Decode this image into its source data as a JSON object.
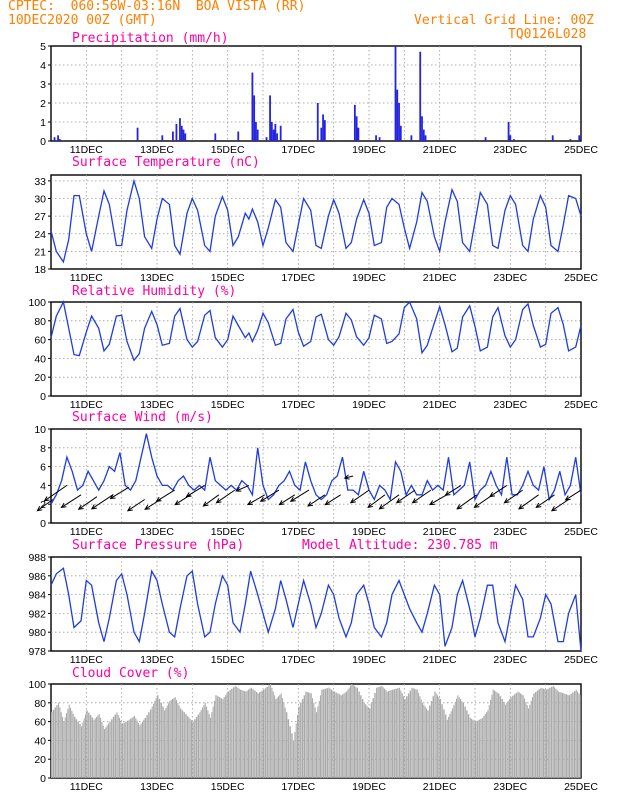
{
  "header": {
    "line1": "CPTEC:  060:56W-03:16N  BOA VISTA (RR)",
    "line2": "10DEC2020 00Z (GMT)",
    "right1": "Vertical Grid Line: 00Z",
    "right2": "TQ0126L028"
  },
  "colors": {
    "header": "#ff7f00",
    "title": "#ff00a0",
    "line": "#1f3ce0",
    "bar": "#2424e0",
    "cloud": "#aaaaaa",
    "grid": "#9a9a9a"
  },
  "day_labels": [
    "11DEC",
    "13DEC",
    "15DEC",
    "17DEC",
    "19DEC",
    "21DEC",
    "23DEC",
    "25DEC"
  ],
  "model_altitude": "Model Altitude: 230.785 m",
  "chart_data": [
    {
      "id": "precip",
      "type": "bar",
      "title": "Precipitation (mm/h)",
      "ylim": [
        0,
        5
      ],
      "yticks": [
        0,
        1,
        2,
        3,
        4,
        5
      ],
      "x_range_days": [
        10,
        25
      ],
      "x": [
        10.1,
        10.2,
        10.25,
        12.45,
        13.15,
        13.45,
        13.55,
        13.65,
        13.7,
        13.75,
        13.8,
        14.65,
        15.3,
        15.7,
        15.75,
        15.8,
        15.85,
        16.1,
        16.2,
        16.25,
        16.3,
        16.35,
        16.4,
        16.5,
        17.55,
        17.65,
        17.7,
        17.75,
        18.6,
        18.65,
        18.7,
        19.2,
        19.3,
        19.75,
        19.8,
        19.85,
        19.9,
        20.2,
        20.45,
        20.5,
        20.55,
        20.6,
        22.3,
        22.95,
        23.0,
        23.1,
        24.2,
        24.7,
        24.95
      ],
      "y": [
        0.2,
        0.3,
        0.1,
        0.7,
        0.3,
        0.5,
        0.9,
        1.2,
        0.8,
        0.6,
        0.4,
        0.4,
        0.5,
        3.6,
        2.4,
        1.0,
        0.6,
        0.2,
        2.4,
        1.0,
        0.6,
        0.9,
        0.4,
        0.8,
        2.0,
        0.7,
        1.4,
        1.1,
        1.9,
        1.3,
        0.7,
        0.3,
        0.2,
        5.0,
        2.7,
        2.0,
        0.8,
        0.3,
        4.7,
        1.3,
        0.6,
        0.3,
        0.2,
        1.0,
        0.3,
        0.1,
        0.3,
        0.1,
        0.3
      ]
    },
    {
      "id": "temp",
      "type": "line",
      "title": "Surface Temperature (nC)",
      "ylim": [
        18,
        34
      ],
      "yticks": [
        18,
        21,
        24,
        27,
        30,
        33
      ],
      "x": [
        10.0,
        10.15,
        10.35,
        10.5,
        10.65,
        10.8,
        11.0,
        11.15,
        11.35,
        11.5,
        11.65,
        11.85,
        12.0,
        12.15,
        12.35,
        12.5,
        12.65,
        12.85,
        13.0,
        13.15,
        13.35,
        13.5,
        13.65,
        13.85,
        14.0,
        14.15,
        14.35,
        14.5,
        14.65,
        14.85,
        15.0,
        15.15,
        15.3,
        15.5,
        15.6,
        15.7,
        15.85,
        16.0,
        16.15,
        16.35,
        16.5,
        16.65,
        16.85,
        17.0,
        17.15,
        17.35,
        17.5,
        17.65,
        17.85,
        18.0,
        18.15,
        18.35,
        18.5,
        18.65,
        18.85,
        19.0,
        19.15,
        19.35,
        19.5,
        19.65,
        19.85,
        20.0,
        20.15,
        20.35,
        20.5,
        20.65,
        20.85,
        21.0,
        21.15,
        21.35,
        21.5,
        21.65,
        21.85,
        22.0,
        22.15,
        22.35,
        22.5,
        22.65,
        22.85,
        23.0,
        23.15,
        23.35,
        23.5,
        23.65,
        23.85,
        24.0,
        24.15,
        24.35,
        24.5,
        24.65,
        24.85,
        25.0
      ],
      "y": [
        24.5,
        21.0,
        19.2,
        23.0,
        30.5,
        30.5,
        24.0,
        21.0,
        27.0,
        31.3,
        29.0,
        22.0,
        22.0,
        28.0,
        33.0,
        30.0,
        23.5,
        21.5,
        26.5,
        30.0,
        29.0,
        22.0,
        20.5,
        27.5,
        30.0,
        28.0,
        22.0,
        21.0,
        27.0,
        30.3,
        28.0,
        22.0,
        23.5,
        27.5,
        26.5,
        28.2,
        26.0,
        22.0,
        25.0,
        29.8,
        28.5,
        22.5,
        21.0,
        25.5,
        30.0,
        28.0,
        22.0,
        21.5,
        27.0,
        29.8,
        27.5,
        21.5,
        22.5,
        26.5,
        29.8,
        27.5,
        22.0,
        22.5,
        28.5,
        30.0,
        29.0,
        25.0,
        21.5,
        26.0,
        31.0,
        29.5,
        23.5,
        21.0,
        26.0,
        31.5,
        29.5,
        22.5,
        21.0,
        26.0,
        31.0,
        29.0,
        22.0,
        21.5,
        28.0,
        30.5,
        29.0,
        22.0,
        21.0,
        26.5,
        30.5,
        28.5,
        22.0,
        21.0,
        25.5,
        30.5,
        30.0,
        27.0
      ]
    },
    {
      "id": "rh",
      "type": "line",
      "title": "Relative Humidity (%)",
      "ylim": [
        0,
        100
      ],
      "yticks": [
        0,
        20,
        40,
        60,
        80,
        100
      ],
      "x": [
        10.0,
        10.15,
        10.35,
        10.5,
        10.65,
        10.8,
        11.0,
        11.15,
        11.35,
        11.5,
        11.65,
        11.85,
        12.0,
        12.15,
        12.35,
        12.5,
        12.65,
        12.85,
        13.0,
        13.15,
        13.35,
        13.5,
        13.65,
        13.85,
        14.0,
        14.15,
        14.35,
        14.5,
        14.65,
        14.85,
        15.0,
        15.15,
        15.3,
        15.5,
        15.6,
        15.7,
        15.85,
        16.0,
        16.15,
        16.35,
        16.5,
        16.65,
        16.85,
        17.0,
        17.15,
        17.35,
        17.5,
        17.65,
        17.85,
        18.0,
        18.15,
        18.35,
        18.5,
        18.65,
        18.85,
        19.0,
        19.15,
        19.35,
        19.5,
        19.65,
        19.85,
        20.0,
        20.15,
        20.35,
        20.5,
        20.65,
        20.85,
        21.0,
        21.15,
        21.35,
        21.5,
        21.65,
        21.85,
        22.0,
        22.15,
        22.35,
        22.5,
        22.65,
        22.85,
        23.0,
        23.15,
        23.35,
        23.5,
        23.65,
        23.85,
        24.0,
        24.15,
        24.35,
        24.5,
        24.65,
        24.85,
        25.0
      ],
      "y": [
        62,
        85,
        100,
        72,
        44,
        43,
        68,
        85,
        72,
        48,
        55,
        85,
        86,
        58,
        38,
        45,
        72,
        90,
        76,
        54,
        56,
        85,
        93,
        60,
        52,
        58,
        86,
        91,
        62,
        52,
        60,
        85,
        75,
        62,
        67,
        58,
        70,
        88,
        78,
        54,
        56,
        82,
        92,
        68,
        53,
        58,
        84,
        87,
        60,
        54,
        63,
        88,
        81,
        63,
        54,
        62,
        86,
        82,
        56,
        58,
        66,
        94,
        100,
        82,
        46,
        54,
        78,
        95,
        76,
        47,
        51,
        84,
        96,
        74,
        48,
        52,
        84,
        94,
        64,
        52,
        60,
        92,
        98,
        75,
        52,
        55,
        88,
        94,
        76,
        48,
        52,
        75
      ]
    },
    {
      "id": "wind",
      "type": "line",
      "title": "Surface Wind (m/s)",
      "ylim": [
        0,
        10
      ],
      "yticks": [
        0,
        2,
        4,
        6,
        8,
        10
      ],
      "x": [
        10.0,
        10.15,
        10.3,
        10.45,
        10.6,
        10.75,
        10.9,
        11.05,
        11.2,
        11.35,
        11.5,
        11.65,
        11.8,
        11.95,
        12.1,
        12.25,
        12.4,
        12.55,
        12.7,
        12.85,
        13.0,
        13.15,
        13.3,
        13.45,
        13.6,
        13.75,
        13.9,
        14.05,
        14.2,
        14.35,
        14.5,
        14.65,
        14.8,
        14.95,
        15.1,
        15.25,
        15.4,
        15.55,
        15.7,
        15.85,
        16.0,
        16.15,
        16.3,
        16.45,
        16.6,
        16.75,
        16.9,
        17.05,
        17.2,
        17.35,
        17.5,
        17.65,
        17.8,
        17.95,
        18.1,
        18.25,
        18.4,
        18.55,
        18.7,
        18.85,
        19.0,
        19.15,
        19.3,
        19.45,
        19.6,
        19.75,
        19.9,
        20.05,
        20.2,
        20.35,
        20.5,
        20.65,
        20.8,
        20.95,
        21.1,
        21.25,
        21.4,
        21.55,
        21.7,
        21.85,
        22.0,
        22.15,
        22.3,
        22.45,
        22.6,
        22.75,
        22.9,
        23.05,
        23.2,
        23.35,
        23.5,
        23.65,
        23.8,
        23.95,
        24.1,
        24.25,
        24.4,
        24.55,
        24.7,
        24.85,
        25.0
      ],
      "y": [
        2.0,
        3.0,
        4.5,
        7.0,
        5.5,
        3.5,
        4.0,
        5.5,
        4.5,
        3.5,
        4.5,
        6.0,
        5.5,
        7.5,
        4.0,
        3.5,
        4.5,
        7.0,
        9.5,
        7.0,
        5.0,
        4.0,
        4.0,
        3.5,
        4.5,
        5.0,
        4.0,
        3.5,
        4.0,
        3.5,
        7.0,
        4.5,
        4.0,
        3.5,
        4.0,
        3.5,
        4.5,
        4.0,
        3.0,
        8.0,
        4.0,
        2.5,
        3.0,
        4.0,
        4.5,
        5.5,
        4.0,
        3.5,
        6.5,
        4.5,
        3.0,
        2.5,
        3.0,
        4.5,
        5.0,
        7.0,
        3.5,
        3.5,
        3.0,
        5.5,
        3.5,
        2.5,
        4.0,
        3.5,
        2.5,
        6.5,
        5.5,
        3.0,
        4.0,
        3.0,
        3.0,
        4.5,
        3.5,
        4.0,
        3.5,
        7.0,
        3.0,
        3.5,
        4.0,
        6.5,
        2.5,
        3.5,
        4.0,
        5.5,
        4.0,
        3.0,
        7.0,
        3.0,
        3.0,
        4.0,
        5.5,
        4.0,
        3.5,
        6.0,
        2.5,
        3.5,
        5.5,
        3.0,
        4.0,
        7.0,
        3.0
      ],
      "arrows_x": [
        10.05,
        10.45,
        10.85,
        11.3,
        11.75,
        12.2,
        12.65,
        13.1,
        13.5,
        13.95,
        14.35,
        14.75,
        15.2,
        15.6,
        16.05,
        16.45,
        16.9,
        17.3,
        17.75,
        18.2,
        18.55,
        19.0,
        19.45,
        19.85,
        20.3,
        20.75,
        21.2,
        21.6,
        22.05,
        22.5,
        22.9,
        23.35,
        23.8,
        24.25,
        24.65,
        25.0
      ],
      "arrows_y": [
        2.5,
        4.0,
        3.0,
        2.8,
        3.0,
        3.8,
        2.5,
        2.5,
        3.5,
        3.0,
        4.0,
        3.0,
        3.5,
        4.0,
        3.0,
        3.5,
        3.0,
        3.5,
        3.0,
        3.0,
        5.0,
        3.5,
        3.0,
        3.0,
        3.5,
        3.5,
        3.0,
        4.0,
        3.0,
        3.0,
        4.0,
        3.5,
        3.0,
        3.0,
        2.5,
        3.5
      ],
      "arrows_u": [
        -2.2,
        -3.2,
        -2.8,
        -2.6,
        -3.0,
        -2.6,
        -2.4,
        -2.2,
        -2.6,
        -2.2,
        -2.6,
        -2.2,
        -2.6,
        -1.8,
        -2.4,
        -2.6,
        -2.2,
        -2.6,
        -2.4,
        -2.2,
        -1.2,
        -2.6,
        -2.4,
        -2.8,
        -2.6,
        -2.6,
        -2.4,
        -2.2,
        -2.8,
        -2.6,
        -2.4,
        -2.6,
        -2.8,
        -2.6,
        -2.4,
        -2.2
      ],
      "arrows_v": [
        -1.6,
        -2.2,
        -1.8,
        -1.8,
        -2.0,
        -1.6,
        -1.6,
        -1.4,
        -1.6,
        -1.4,
        -1.6,
        -1.6,
        -1.8,
        -0.8,
        -1.4,
        -1.6,
        -1.4,
        -1.6,
        -1.6,
        -1.4,
        -0.3,
        -1.8,
        -1.8,
        -2.0,
        -1.8,
        -1.8,
        -1.4,
        -1.4,
        -2.0,
        -1.8,
        -1.6,
        -1.8,
        -2.0,
        -1.8,
        -1.6,
        -1.4
      ]
    },
    {
      "id": "pressure",
      "type": "line",
      "title": "Surface Pressure (hPa)",
      "ylim": [
        978,
        988
      ],
      "yticks": [
        978,
        980,
        982,
        984,
        986,
        988
      ],
      "x": [
        10.0,
        10.15,
        10.35,
        10.5,
        10.65,
        10.85,
        11.0,
        11.15,
        11.35,
        11.5,
        11.65,
        11.85,
        12.0,
        12.15,
        12.35,
        12.5,
        12.65,
        12.85,
        13.0,
        13.15,
        13.35,
        13.5,
        13.65,
        13.85,
        14.0,
        14.15,
        14.35,
        14.5,
        14.65,
        14.85,
        15.0,
        15.15,
        15.35,
        15.5,
        15.65,
        15.85,
        16.0,
        16.15,
        16.35,
        16.5,
        16.65,
        16.85,
        17.0,
        17.15,
        17.35,
        17.5,
        17.65,
        17.85,
        18.0,
        18.15,
        18.35,
        18.5,
        18.65,
        18.85,
        19.0,
        19.15,
        19.35,
        19.5,
        19.65,
        19.85,
        20.0,
        20.15,
        20.35,
        20.5,
        20.65,
        20.85,
        21.0,
        21.15,
        21.35,
        21.5,
        21.65,
        21.85,
        22.0,
        22.15,
        22.35,
        22.5,
        22.65,
        22.85,
        23.0,
        23.15,
        23.35,
        23.5,
        23.65,
        23.85,
        24.0,
        24.15,
        24.35,
        24.5,
        24.65,
        24.85,
        25.0
      ],
      "y": [
        985.0,
        986.2,
        986.8,
        984.0,
        980.5,
        981.2,
        985.5,
        985.0,
        981.0,
        979.0,
        981.5,
        985.5,
        986.2,
        984.0,
        980.0,
        979.0,
        982.0,
        986.5,
        985.5,
        983.0,
        980.0,
        979.5,
        982.5,
        986.0,
        986.5,
        983.0,
        979.5,
        980.0,
        983.0,
        986.0,
        985.0,
        981.0,
        980.0,
        983.0,
        986.5,
        984.0,
        982.0,
        980.0,
        982.5,
        985.5,
        983.5,
        980.5,
        983.0,
        985.5,
        983.0,
        980.5,
        982.0,
        985.0,
        984.0,
        981.5,
        979.5,
        981.0,
        984.0,
        985.0,
        983.0,
        980.5,
        979.5,
        981.0,
        984.0,
        985.5,
        984.0,
        982.5,
        981.0,
        980.0,
        982.0,
        985.0,
        984.0,
        978.5,
        980.5,
        984.0,
        985.5,
        982.5,
        979.5,
        981.5,
        985.0,
        985.0,
        981.0,
        979.0,
        982.0,
        985.0,
        983.5,
        979.5,
        979.5,
        981.5,
        984.0,
        983.0,
        979.0,
        979.0,
        982.0,
        984.0,
        978.0
      ]
    },
    {
      "id": "cloud",
      "type": "area",
      "title": "Cloud Cover (%)",
      "ylim": [
        0,
        100
      ],
      "yticks": [
        0,
        20,
        40,
        60,
        80,
        100
      ],
      "x": [
        10.0,
        10.2,
        10.35,
        10.5,
        10.65,
        10.85,
        11.0,
        11.2,
        11.35,
        11.5,
        11.65,
        11.85,
        12.0,
        12.2,
        12.35,
        12.5,
        12.65,
        12.85,
        13.0,
        13.2,
        13.35,
        13.5,
        13.65,
        13.85,
        14.0,
        14.2,
        14.35,
        14.5,
        14.65,
        14.85,
        15.0,
        15.2,
        15.35,
        15.5,
        15.65,
        15.85,
        16.0,
        16.2,
        16.35,
        16.5,
        16.65,
        16.85,
        17.0,
        17.2,
        17.35,
        17.5,
        17.65,
        17.85,
        18.0,
        18.2,
        18.35,
        18.5,
        18.65,
        18.85,
        19.0,
        19.2,
        19.35,
        19.5,
        19.65,
        19.85,
        20.0,
        20.2,
        20.35,
        20.5,
        20.65,
        20.85,
        21.0,
        21.2,
        21.35,
        21.5,
        21.65,
        21.85,
        22.0,
        22.2,
        22.35,
        22.5,
        22.65,
        22.85,
        23.0,
        23.2,
        23.35,
        23.5,
        23.65,
        23.85,
        24.0,
        24.2,
        24.35,
        24.5,
        24.65,
        24.85,
        25.0
      ],
      "y": [
        70,
        80,
        60,
        78,
        65,
        55,
        72,
        62,
        68,
        52,
        60,
        70,
        58,
        62,
        66,
        56,
        64,
        76,
        88,
        72,
        82,
        86,
        74,
        66,
        60,
        70,
        80,
        64,
        88,
        84,
        92,
        98,
        94,
        92,
        96,
        90,
        94,
        100,
        84,
        90,
        70,
        40,
        76,
        92,
        90,
        70,
        94,
        96,
        92,
        88,
        92,
        100,
        96,
        80,
        74,
        96,
        98,
        92,
        94,
        96,
        84,
        96,
        94,
        80,
        72,
        92,
        84,
        62,
        74,
        88,
        80,
        64,
        60,
        64,
        72,
        94,
        90,
        78,
        86,
        92,
        88,
        74,
        90,
        96,
        94,
        98,
        92,
        90,
        88,
        94,
        86
      ]
    }
  ]
}
